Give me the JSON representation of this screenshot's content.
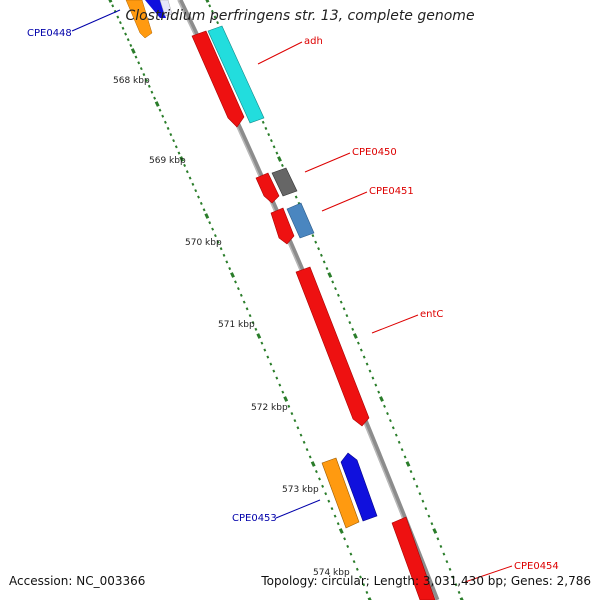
{
  "title": "Clostridium perfringens str. 13, complete genome",
  "footer": {
    "accession": "Accession: NC_003366",
    "topology": "Topology: circular; Length: 3,031,430 bp; Genes: 2,786"
  },
  "colors": {
    "backbone": "#8c8c8c",
    "tick_dots": "#2a7d2a",
    "red_gene": "#ee1111",
    "cyan_gene": "#22dddd",
    "gray_gene": "#666666",
    "steelblue_gene": "#4a86c0",
    "orange_gene": "#ff9a10",
    "blue_gene": "#1010dd",
    "label_red": "#dd0000",
    "label_blue": "#0000aa"
  },
  "scale_labels": [
    "568 kbp",
    "569 kbp",
    "570 kbp",
    "571 kbp",
    "572 kbp",
    "573 kbp",
    "574 kbp"
  ],
  "gene_labels": [
    {
      "name": "CPE0448",
      "color": "blue"
    },
    {
      "name": "adh",
      "color": "red"
    },
    {
      "name": "CPE0450",
      "color": "red"
    },
    {
      "name": "CPE0451",
      "color": "red"
    },
    {
      "name": "entC",
      "color": "red"
    },
    {
      "name": "CPE0453",
      "color": "blue"
    },
    {
      "name": "CPE0454",
      "color": "red"
    }
  ]
}
